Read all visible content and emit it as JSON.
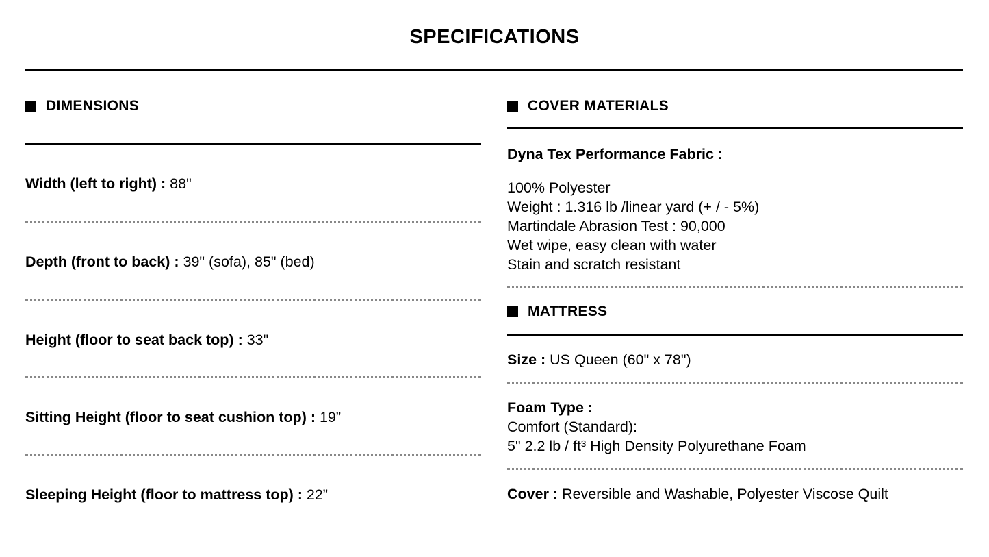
{
  "title": "SPECIFICATIONS",
  "dimensions": {
    "heading": "DIMENSIONS",
    "rows": [
      {
        "label": "Width (left to right) :",
        "value": " 88\""
      },
      {
        "label": "Depth (front to back) :",
        "value": " 39\" (sofa), 85\" (bed)"
      },
      {
        "label": "Height (floor to seat back top) :",
        "value": " 33\""
      },
      {
        "label": "Sitting Height (floor to seat cushion top) :",
        "value": " 19”"
      },
      {
        "label": "Sleeping Height (floor to mattress top) :",
        "value": " 22”"
      }
    ]
  },
  "cover_materials": {
    "heading": "COVER MATERIALS",
    "fabric_label": "Dyna Tex Performance Fabric :",
    "lines": [
      "100% Polyester",
      "Weight : 1.316 lb /linear yard (+ / - 5%)",
      "Martindale Abrasion Test : 90,000",
      "Wet wipe, easy clean with water",
      "Stain and scratch resistant"
    ]
  },
  "mattress": {
    "heading": "MATTRESS",
    "size_label": "Size :",
    "size_value": " US Queen (60\" x 78\")",
    "foam_label": "Foam Type :",
    "foam_lines": [
      "Comfort (Standard):",
      "5\" 2.2 lb / ft³ High Density Polyurethane Foam"
    ],
    "cover_label": "Cover :",
    "cover_value": " Reversible and Washable, Polyester Viscose Quilt"
  }
}
